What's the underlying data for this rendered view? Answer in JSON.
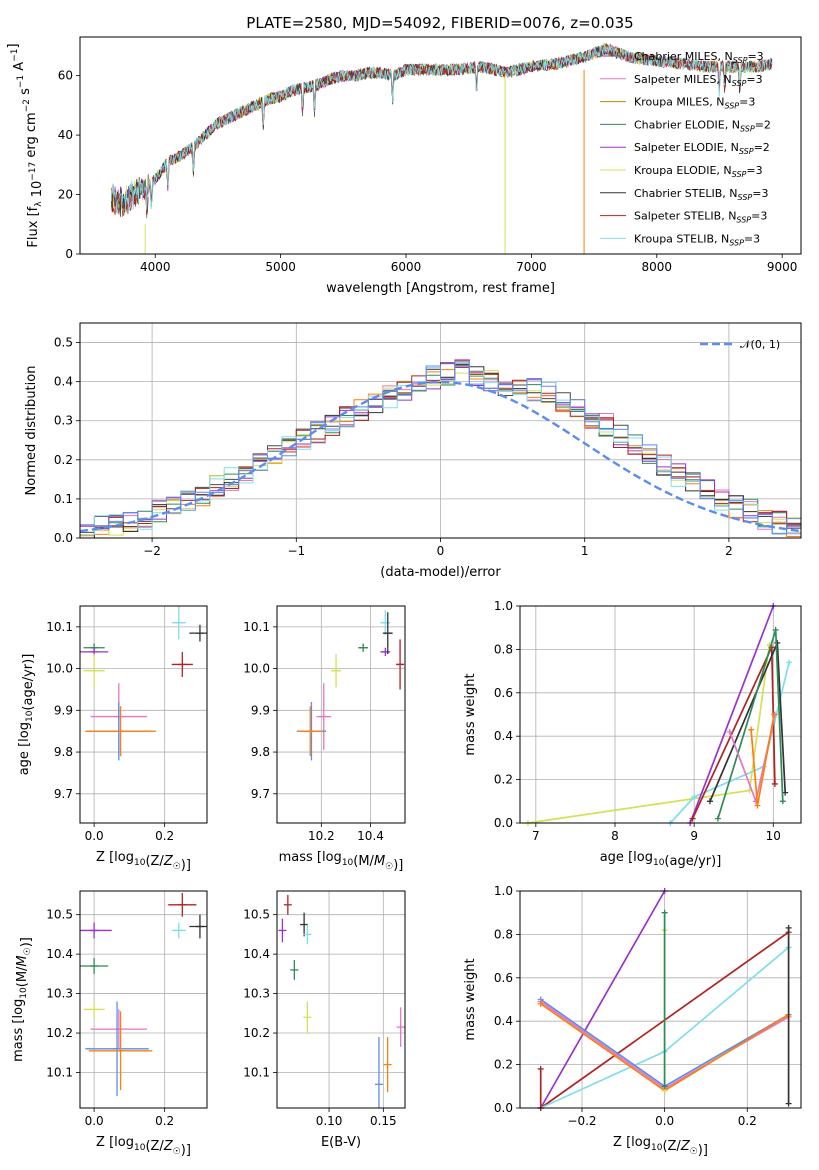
{
  "figure_title": "PLATE=2580, MJD=54092, FIBERID=0076, z=0.035",
  "legend_models": [
    {
      "name": "Chabrier MILES, N",
      "sub": "SSP",
      "eq": "=3",
      "color": "#5a5a5a"
    },
    {
      "name": "Salpeter MILES, N",
      "sub": "SSP",
      "eq": "=3",
      "color": "#e377c2"
    },
    {
      "name": "Kroupa MILES, N",
      "sub": "SSP",
      "eq": "=3",
      "color": "#b8860b"
    },
    {
      "name": "Chabrier ELODIE, N",
      "sub": "SSP",
      "eq": "=2",
      "color": "#2e8b57"
    },
    {
      "name": "Salpeter ELODIE, N",
      "sub": "SSP",
      "eq": "=2",
      "color": "#9932cc"
    },
    {
      "name": "Kroupa ELODIE, N",
      "sub": "SSP",
      "eq": "=3",
      "color": "#d4e157"
    },
    {
      "name": "Chabrier STELIB, N",
      "sub": "SSP",
      "eq": "=3",
      "color": "#333333"
    },
    {
      "name": "Salpeter STELIB, N",
      "sub": "SSP",
      "eq": "=3",
      "color": "#b22222"
    },
    {
      "name": "Kroupa STELIB, N",
      "sub": "SSP",
      "eq": "=3",
      "color": "#80deea"
    }
  ],
  "hist_colors": [
    "#4a4a4a",
    "#e377c2",
    "#ff7f0e",
    "#2e8b57",
    "#9932cc",
    "#d4e157",
    "#333333",
    "#b22222",
    "#80deea",
    "#5b8def"
  ],
  "chart_data": [
    {
      "id": "spectrum",
      "type": "line",
      "xlabel": "wavelength [Angstrom, rest frame]",
      "ylabel": "Flux [f_λ 10^-17 erg cm^-2 s^-1 A^-1]",
      "xlim": [
        3400,
        9150
      ],
      "ylim": [
        0,
        73
      ],
      "xticks": [
        4000,
        5000,
        6000,
        7000,
        8000,
        9000
      ],
      "yticks": [
        0,
        20,
        40,
        60
      ],
      "grid": false,
      "legend_position": "right",
      "continuum": {
        "x": [
          3650,
          3750,
          3800,
          3900,
          4000,
          4100,
          4200,
          4300,
          4400,
          4500,
          4600,
          4700,
          4800,
          4900,
          5000,
          5100,
          5200,
          5300,
          5400,
          5500,
          5600,
          5700,
          5800,
          5900,
          6000,
          6200,
          6400,
          6600,
          6800,
          7000,
          7200,
          7400,
          7600,
          7800,
          8000,
          8200,
          8400,
          8600,
          8800,
          8920
        ],
        "y": [
          18,
          17,
          20,
          22,
          25,
          31,
          33,
          36,
          40,
          44,
          46,
          48,
          50,
          52,
          53,
          55,
          56,
          57,
          59,
          60,
          60,
          61,
          61,
          60,
          62,
          62,
          62,
          63,
          61,
          63,
          64,
          66,
          69,
          66,
          65,
          64,
          63,
          63,
          63,
          64
        ]
      },
      "absorption_lines": [
        3934,
        3969,
        4101,
        4304,
        4861,
        5175,
        5270,
        5893,
        6563,
        8498,
        8542,
        8662
      ]
    },
    {
      "id": "residuals",
      "type": "bar",
      "xlabel": "(data-model)/error",
      "ylabel": "Normed distribution",
      "xlim": [
        -2.5,
        2.5
      ],
      "ylim": [
        0,
        0.55
      ],
      "xticks": [
        -2,
        -1,
        0,
        1,
        2
      ],
      "yticks": [
        0.0,
        0.1,
        0.2,
        0.3,
        0.4,
        0.5
      ],
      "grid": true,
      "legend": "𝒩(0, 1)",
      "legend_position": "top-right",
      "bin_width": 0.1,
      "normal_curve": {
        "mean": 0,
        "sigma": 1,
        "color": "#5b8def"
      },
      "base": [
        0.02,
        0.03,
        0.03,
        0.04,
        0.05,
        0.07,
        0.08,
        0.09,
        0.11,
        0.13,
        0.15,
        0.17,
        0.19,
        0.21,
        0.23,
        0.25,
        0.27,
        0.29,
        0.31,
        0.33,
        0.35,
        0.36,
        0.38,
        0.4,
        0.41,
        0.42,
        0.43,
        0.42,
        0.4,
        0.39,
        0.39,
        0.38,
        0.37,
        0.35,
        0.33,
        0.31,
        0.29,
        0.26,
        0.24,
        0.21,
        0.19,
        0.16,
        0.14,
        0.12,
        0.1,
        0.08,
        0.07,
        0.05,
        0.04,
        0.03
      ]
    },
    {
      "id": "age-vs-metallicity",
      "type": "scatter",
      "xlabel": "Z [log10(Z/Z☉)]",
      "ylabel": "age [log10(age/yr)]",
      "xlim": [
        -0.04,
        0.32
      ],
      "ylim": [
        9.63,
        10.15
      ],
      "xticks": [
        0.0,
        0.2
      ],
      "yticks": [
        9.7,
        9.8,
        9.9,
        10.0,
        10.1
      ],
      "grid": true,
      "points": [
        {
          "x": 0.0,
          "y": 10.05,
          "xerr": 0.03,
          "yerr": 0.01,
          "color": "#2e8b57"
        },
        {
          "x": 0.0,
          "y": 10.04,
          "xerr": 0.04,
          "yerr": 0.01,
          "color": "#9932cc"
        },
        {
          "x": 0.0,
          "y": 9.995,
          "xerr": 0.03,
          "yerr": 0.04,
          "color": "#d4e157"
        },
        {
          "x": 0.07,
          "y": 9.885,
          "xerr": 0.08,
          "yerr": 0.08,
          "color": "#e377c2"
        },
        {
          "x": 0.07,
          "y": 9.85,
          "xerr": 0.09,
          "yerr": 0.07,
          "color": "#5b8def"
        },
        {
          "x": 0.075,
          "y": 9.85,
          "xerr": 0.1,
          "yerr": 0.06,
          "color": "#ff7f0e"
        },
        {
          "x": 0.24,
          "y": 10.11,
          "xerr": 0.02,
          "yerr": 0.04,
          "color": "#80deea"
        },
        {
          "x": 0.3,
          "y": 10.085,
          "xerr": 0.03,
          "yerr": 0.02,
          "color": "#333333"
        },
        {
          "x": 0.25,
          "y": 10.01,
          "xerr": 0.03,
          "yerr": 0.03,
          "color": "#b22222"
        }
      ]
    },
    {
      "id": "age-vs-mass",
      "type": "scatter",
      "xlabel": "mass [log10(M/M☉)]",
      "ylabel": "",
      "xlim": [
        10.02,
        10.54
      ],
      "ylim": [
        9.63,
        10.15
      ],
      "xticks": [
        10.2,
        10.4
      ],
      "yticks": [
        9.7,
        9.8,
        9.9,
        10.0,
        10.1
      ],
      "grid": true,
      "points": [
        {
          "x": 10.37,
          "y": 10.05,
          "xerr": 0.02,
          "yerr": 0.01,
          "color": "#2e8b57"
        },
        {
          "x": 10.46,
          "y": 10.04,
          "xerr": 0.02,
          "yerr": 0.01,
          "color": "#9932cc"
        },
        {
          "x": 10.26,
          "y": 9.995,
          "xerr": 0.02,
          "yerr": 0.04,
          "color": "#d4e157"
        },
        {
          "x": 10.21,
          "y": 9.885,
          "xerr": 0.03,
          "yerr": 0.08,
          "color": "#e377c2"
        },
        {
          "x": 10.16,
          "y": 9.85,
          "xerr": 0.06,
          "yerr": 0.07,
          "color": "#5b8def"
        },
        {
          "x": 10.155,
          "y": 9.85,
          "xerr": 0.05,
          "yerr": 0.06,
          "color": "#ff7f0e"
        },
        {
          "x": 10.46,
          "y": 10.11,
          "xerr": 0.02,
          "yerr": 0.03,
          "color": "#80deea"
        },
        {
          "x": 10.47,
          "y": 10.085,
          "xerr": 0.02,
          "yerr": 0.05,
          "color": "#333333"
        },
        {
          "x": 10.52,
          "y": 10.01,
          "xerr": 0.015,
          "yerr": 0.06,
          "color": "#b22222"
        }
      ]
    },
    {
      "id": "weight-vs-age",
      "type": "line",
      "xlabel": "age [log10(age/yr)]",
      "ylabel": "mass weight",
      "xlim": [
        6.8,
        10.35
      ],
      "ylim": [
        0,
        1
      ],
      "xticks": [
        7,
        8,
        9,
        10
      ],
      "yticks": [
        0.0,
        0.2,
        0.4,
        0.6,
        0.8,
        1.0
      ],
      "grid": true,
      "series": [
        {
          "color": "#d4e157",
          "x": [
            6.9,
            9.7,
            9.95
          ],
          "y": [
            0.0,
            0.15,
            0.82
          ]
        },
        {
          "color": "#80deea",
          "x": [
            8.7,
            9.0,
            9.88,
            10.2
          ],
          "y": [
            0.0,
            0.12,
            0.26,
            0.74
          ]
        },
        {
          "color": "#9932cc",
          "x": [
            8.95,
            10.0
          ],
          "y": [
            0.0,
            1.0
          ]
        },
        {
          "color": "#b22222",
          "x": [
            8.98,
            9.98,
            10.02
          ],
          "y": [
            0.02,
            0.81,
            0.18
          ]
        },
        {
          "color": "#333333",
          "x": [
            9.2,
            10.05,
            10.15
          ],
          "y": [
            0.1,
            0.83,
            0.14
          ]
        },
        {
          "color": "#2e8b57",
          "x": [
            9.3,
            10.03,
            10.12
          ],
          "y": [
            0.02,
            0.89,
            0.1
          ]
        },
        {
          "color": "#e377c2",
          "x": [
            9.45,
            9.78,
            10.02
          ],
          "y": [
            0.42,
            0.1,
            0.5
          ]
        },
        {
          "color": "#ff7f0e",
          "x": [
            9.72,
            9.8,
            10.01
          ],
          "y": [
            0.43,
            0.08,
            0.5
          ]
        }
      ]
    },
    {
      "id": "mass-vs-metallicity",
      "type": "scatter",
      "xlabel": "Z [log10(Z/Z☉)]",
      "ylabel": "mass [log10(M/M☉)]",
      "xlim": [
        -0.04,
        0.32
      ],
      "ylim": [
        10.01,
        10.56
      ],
      "xticks": [
        0.0,
        0.2
      ],
      "yticks": [
        10.1,
        10.2,
        10.3,
        10.4,
        10.5
      ],
      "grid": true,
      "points": [
        {
          "x": 0.0,
          "y": 10.46,
          "xerr": 0.05,
          "yerr": 0.02,
          "color": "#9932cc"
        },
        {
          "x": 0.0,
          "y": 10.37,
          "xerr": 0.04,
          "yerr": 0.02,
          "color": "#2e8b57"
        },
        {
          "x": 0.0,
          "y": 10.26,
          "xerr": 0.03,
          "yerr": 0.02,
          "color": "#d4e157"
        },
        {
          "x": 0.07,
          "y": 10.21,
          "xerr": 0.08,
          "yerr": 0.05,
          "color": "#e377c2"
        },
        {
          "x": 0.065,
          "y": 10.16,
          "xerr": 0.09,
          "yerr": 0.12,
          "color": "#5b8def"
        },
        {
          "x": 0.075,
          "y": 10.155,
          "xerr": 0.09,
          "yerr": 0.1,
          "color": "#ff7f0e"
        },
        {
          "x": 0.24,
          "y": 10.46,
          "xerr": 0.02,
          "yerr": 0.02,
          "color": "#80deea"
        },
        {
          "x": 0.3,
          "y": 10.47,
          "xerr": 0.03,
          "yerr": 0.03,
          "color": "#333333"
        },
        {
          "x": 0.25,
          "y": 10.525,
          "xerr": 0.04,
          "yerr": 0.03,
          "color": "#b22222"
        }
      ]
    },
    {
      "id": "mass-vs-extinction",
      "type": "scatter",
      "xlabel": "E(B-V)",
      "ylabel": "",
      "xlim": [
        0.052,
        0.17
      ],
      "ylim": [
        10.01,
        10.56
      ],
      "xticks": [
        0.1,
        0.15
      ],
      "yticks": [
        10.1,
        10.2,
        10.3,
        10.4,
        10.5
      ],
      "grid": true,
      "points": [
        {
          "x": 0.062,
          "y": 10.525,
          "xerr": 0.0,
          "yerr": 0.025,
          "color": "#b22222"
        },
        {
          "x": 0.057,
          "y": 10.46,
          "xerr": 0.0,
          "yerr": 0.03,
          "color": "#9932cc"
        },
        {
          "x": 0.077,
          "y": 10.475,
          "xerr": 0.0,
          "yerr": 0.03,
          "color": "#333333"
        },
        {
          "x": 0.08,
          "y": 10.45,
          "xerr": 0.0,
          "yerr": 0.025,
          "color": "#80deea"
        },
        {
          "x": 0.068,
          "y": 10.36,
          "xerr": 0.0,
          "yerr": 0.025,
          "color": "#2e8b57"
        },
        {
          "x": 0.08,
          "y": 10.24,
          "xerr": 0.0,
          "yerr": 0.04,
          "color": "#d4e157"
        },
        {
          "x": 0.166,
          "y": 10.215,
          "xerr": 0.0,
          "yerr": 0.05,
          "color": "#e377c2"
        },
        {
          "x": 0.146,
          "y": 10.07,
          "xerr": 0.0,
          "yerr": 0.12,
          "color": "#5b8def"
        },
        {
          "x": 0.154,
          "y": 10.12,
          "xerr": 0.0,
          "yerr": 0.07,
          "color": "#ff7f0e"
        }
      ]
    },
    {
      "id": "weight-vs-metallicity",
      "type": "line",
      "xlabel": "Z [log10(Z/Z☉)]",
      "ylabel": "mass weight",
      "xlim": [
        -0.35,
        0.33
      ],
      "ylim": [
        0,
        1
      ],
      "xticks": [
        -0.2,
        0.0,
        0.2
      ],
      "yticks": [
        0.0,
        0.2,
        0.4,
        0.6,
        0.8,
        1.0
      ],
      "grid": true,
      "series": [
        {
          "color": "#9932cc",
          "x": [
            -0.3,
            0.0
          ],
          "y": [
            0.0,
            1.0
          ]
        },
        {
          "color": "#b22222",
          "x": [
            -0.3,
            0.3
          ],
          "y": [
            0.0,
            0.81
          ]
        },
        {
          "color": "#80deea",
          "x": [
            -0.3,
            0.0,
            0.3
          ],
          "y": [
            0.0,
            0.26,
            0.74
          ]
        },
        {
          "color": "#5b8def",
          "x": [
            -0.3,
            0.0,
            0.3
          ],
          "y": [
            0.5,
            0.1,
            0.43
          ]
        },
        {
          "color": "#e377c2",
          "x": [
            -0.3,
            0.0,
            0.3
          ],
          "y": [
            0.49,
            0.09,
            0.42
          ]
        },
        {
          "color": "#ff7f0e",
          "x": [
            -0.3,
            0.0,
            0.3
          ],
          "y": [
            0.48,
            0.08,
            0.43
          ]
        },
        {
          "color": "#d4e157",
          "x": [
            0.0,
            0.0
          ],
          "y": [
            0.82,
            0.08
          ]
        },
        {
          "color": "#2e8b57",
          "x": [
            0.0,
            0.0
          ],
          "y": [
            0.9,
            0.1
          ]
        },
        {
          "color": "#333333",
          "x": [
            0.3,
            0.3
          ],
          "y": [
            0.83,
            0.02
          ]
        },
        {
          "color": "#b22222",
          "x": [
            -0.3,
            -0.3
          ],
          "y": [
            0.18,
            0.0
          ]
        }
      ]
    }
  ]
}
